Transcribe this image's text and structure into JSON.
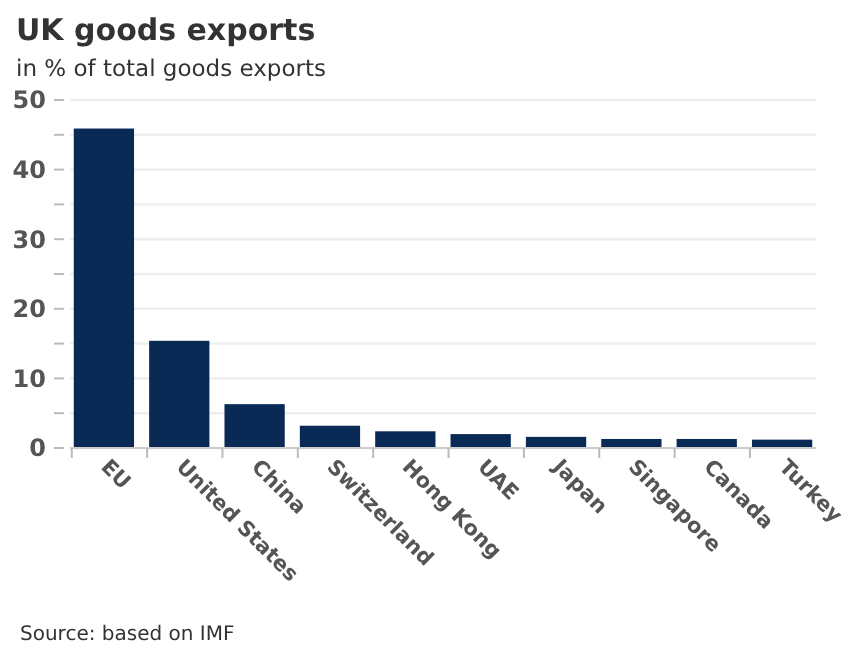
{
  "chart_data": {
    "type": "bar",
    "title": "UK goods exports",
    "subtitle": "in % of total goods exports",
    "categories": [
      "EU",
      "United States",
      "China",
      "Switzerland",
      "Hong Kong",
      "UAE",
      "Japan",
      "Singapore",
      "Canada",
      "Turkey"
    ],
    "values": [
      45.9,
      15.4,
      6.3,
      3.2,
      2.4,
      2.0,
      1.6,
      1.3,
      1.3,
      1.2
    ],
    "color": "#0a2a56",
    "ylim": [
      0,
      50
    ],
    "yticks": [
      0,
      {
        "value": 5,
        "label": null
      },
      10,
      {
        "value": 15,
        "label": null
      },
      20,
      {
        "value": 25,
        "label": null
      },
      30,
      {
        "value": 35,
        "label": null
      },
      40,
      {
        "value": 45,
        "label": null
      },
      50
    ],
    "grid": "y",
    "annotations": [
      "Source: based on IMF"
    ]
  }
}
